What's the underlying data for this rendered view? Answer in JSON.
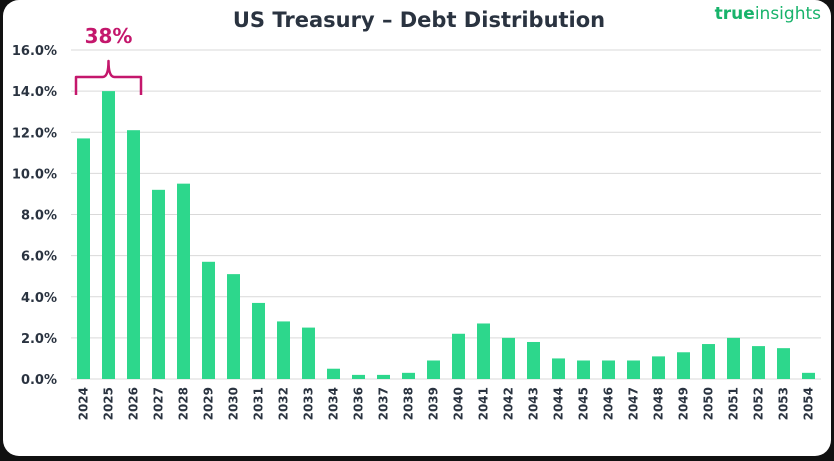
{
  "chart_data": {
    "type": "bar",
    "title": "US Treasury – Debt Distribution",
    "xlabel": "",
    "ylabel": "",
    "ylim": [
      0,
      16
    ],
    "yticks": [
      "0.0%",
      "2.0%",
      "4.0%",
      "6.0%",
      "8.0%",
      "10.0%",
      "12.0%",
      "14.0%",
      "16.0%"
    ],
    "grid": true,
    "categories": [
      "2024",
      "2025",
      "2026",
      "2027",
      "2028",
      "2029",
      "2030",
      "2031",
      "2032",
      "2033",
      "2034",
      "2036",
      "2037",
      "2038",
      "2039",
      "2040",
      "2041",
      "2042",
      "2043",
      "2044",
      "2045",
      "2046",
      "2047",
      "2048",
      "2049",
      "2050",
      "2051",
      "2052",
      "2053",
      "2054"
    ],
    "values": [
      11.7,
      14.0,
      12.1,
      9.2,
      9.5,
      5.7,
      5.1,
      3.7,
      2.8,
      2.5,
      0.5,
      0.2,
      0.2,
      0.3,
      0.9,
      2.2,
      2.7,
      2.0,
      1.8,
      1.0,
      0.9,
      0.9,
      0.9,
      1.1,
      1.3,
      1.7,
      2.0,
      1.6,
      1.5,
      0.3
    ],
    "bar_color": "#2dd78c",
    "annotation": {
      "text": "38%",
      "spans": [
        "2024",
        "2026"
      ],
      "color": "#c4176c"
    }
  },
  "brand": {
    "part1": "true",
    "part2": "insights"
  }
}
